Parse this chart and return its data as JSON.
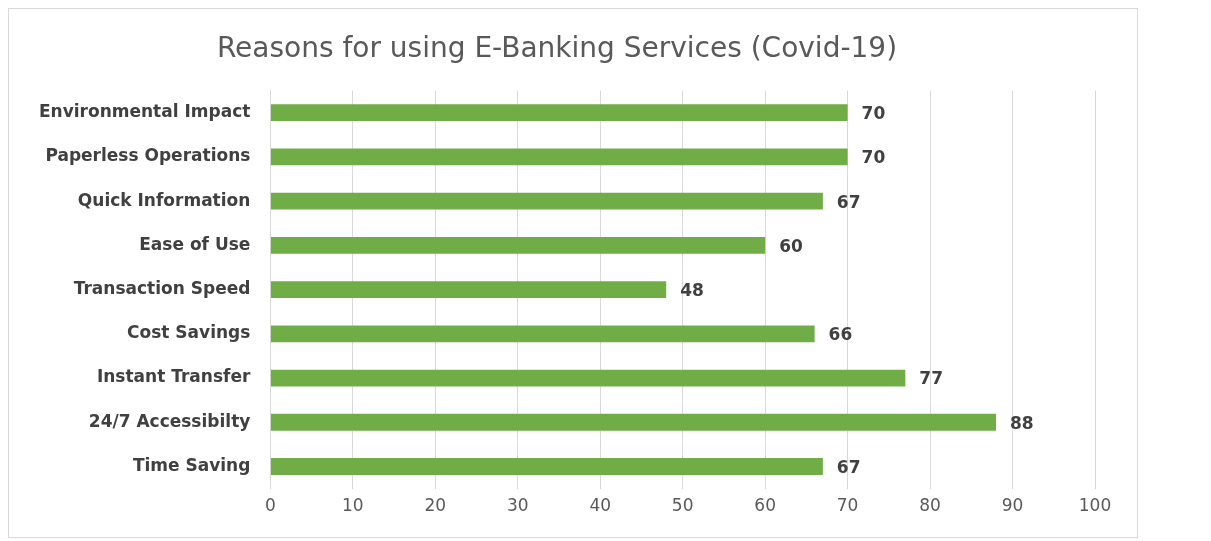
{
  "chart_data": {
    "type": "bar",
    "orientation": "horizontal",
    "title": "Reasons for using E-Banking Services (Covid-19)",
    "categories": [
      "Environmental Impact",
      "Paperless Operations",
      "Quick Information",
      "Ease of Use",
      "Transaction Speed",
      "Cost Savings",
      "Instant Transfer",
      "24/7 Accessibilty",
      "Time Saving"
    ],
    "values": [
      70,
      70,
      67,
      60,
      48,
      66,
      77,
      88,
      67
    ],
    "color": "#70ad47",
    "xlim": [
      0,
      100
    ],
    "xticks": [
      0,
      10,
      20,
      30,
      40,
      50,
      60,
      70,
      80,
      90,
      100
    ],
    "grid": "x",
    "data_labels": true,
    "legend": false
  }
}
